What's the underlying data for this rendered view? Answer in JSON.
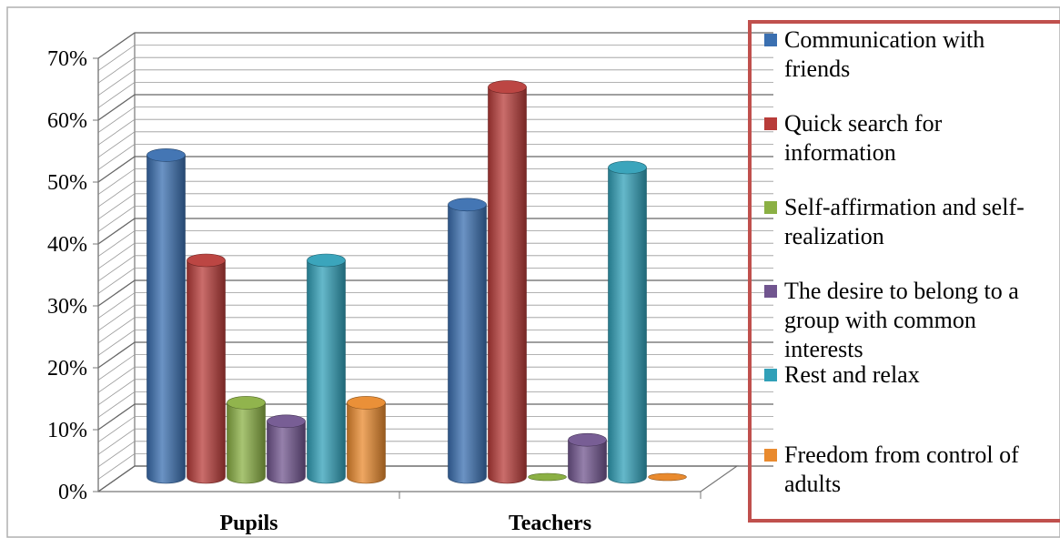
{
  "chart_data": {
    "type": "bar",
    "categories": [
      "Pupils",
      "Teachers"
    ],
    "series": [
      {
        "name": "Communication with friends",
        "color": "#3a6fb0",
        "values": [
          52,
          44
        ]
      },
      {
        "name": "Quick search for information",
        "color": "#b83c39",
        "values": [
          35,
          63
        ]
      },
      {
        "name": "Self-affirmation and self-realization",
        "color": "#8bb044",
        "values": [
          12,
          0
        ]
      },
      {
        "name": "The desire to belong to a group with common interests",
        "color": "#71558f",
        "values": [
          9,
          6
        ]
      },
      {
        "name": "Rest and relax",
        "color": "#31a0b8",
        "values": [
          35,
          50
        ]
      },
      {
        "name": "Freedom from control of adults",
        "color": "#e98a2e",
        "values": [
          12,
          0
        ]
      }
    ],
    "yticks": [
      "0%",
      "10%",
      "20%",
      "30%",
      "40%",
      "50%",
      "60%",
      "70%"
    ],
    "ylim": [
      0,
      70
    ],
    "grid": true,
    "legend_position": "right"
  },
  "legend": {
    "items": [
      {
        "label": "Communication with friends",
        "color": "#3a6fb0"
      },
      {
        "label": "Quick search for information",
        "color": "#b83c39"
      },
      {
        "label": "Self-affirmation and self-realization",
        "color": "#8bb044"
      },
      {
        "label": "The desire to belong to a group with common interests",
        "color": "#71558f"
      },
      {
        "label": "Rest and relax",
        "color": "#31a0b8"
      },
      {
        "label": "Freedom from control of adults",
        "color": "#e98a2e"
      }
    ]
  },
  "frame_color": "#b0b0b0",
  "legend_border_color": "#c0504d"
}
